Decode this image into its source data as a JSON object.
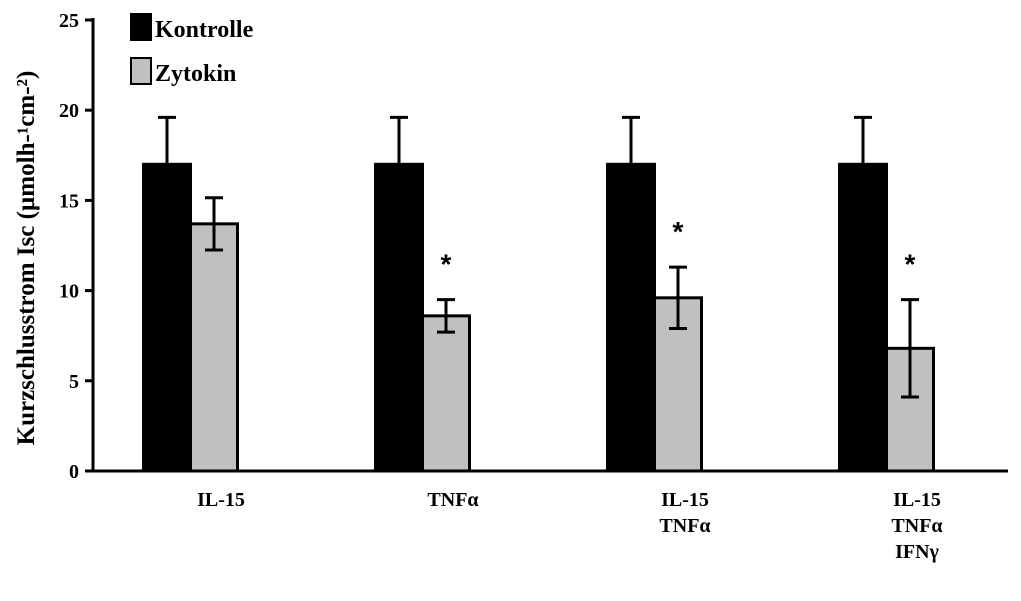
{
  "chart_data": {
    "type": "bar",
    "title": "",
    "ylabel": "Kurzschlusstrom Isc (µmolh-¹cm-²)",
    "xlabel": "",
    "ylim": [
      0,
      25
    ],
    "yticks": [
      0,
      5,
      10,
      15,
      20,
      25
    ],
    "grid": false,
    "legend_position": "top-left",
    "categories": [
      [
        "IL-15"
      ],
      [
        "TNFα"
      ],
      [
        "IL-15",
        "TNFα"
      ],
      [
        "IL-15",
        "TNFα",
        "IFNγ"
      ]
    ],
    "series": [
      {
        "name": "Kontrolle",
        "color": "#000000",
        "values": [
          17.0,
          17.0,
          17.0,
          17.0
        ],
        "errors": [
          2.6,
          2.6,
          2.6,
          2.6
        ]
      },
      {
        "name": "Zytokin",
        "color": "#c0c0c0",
        "values": [
          13.7,
          8.6,
          9.6,
          6.8
        ],
        "errors": [
          1.45,
          0.9,
          1.7,
          2.7
        ]
      }
    ],
    "annotations": [
      "",
      "*",
      "*",
      "*"
    ]
  }
}
